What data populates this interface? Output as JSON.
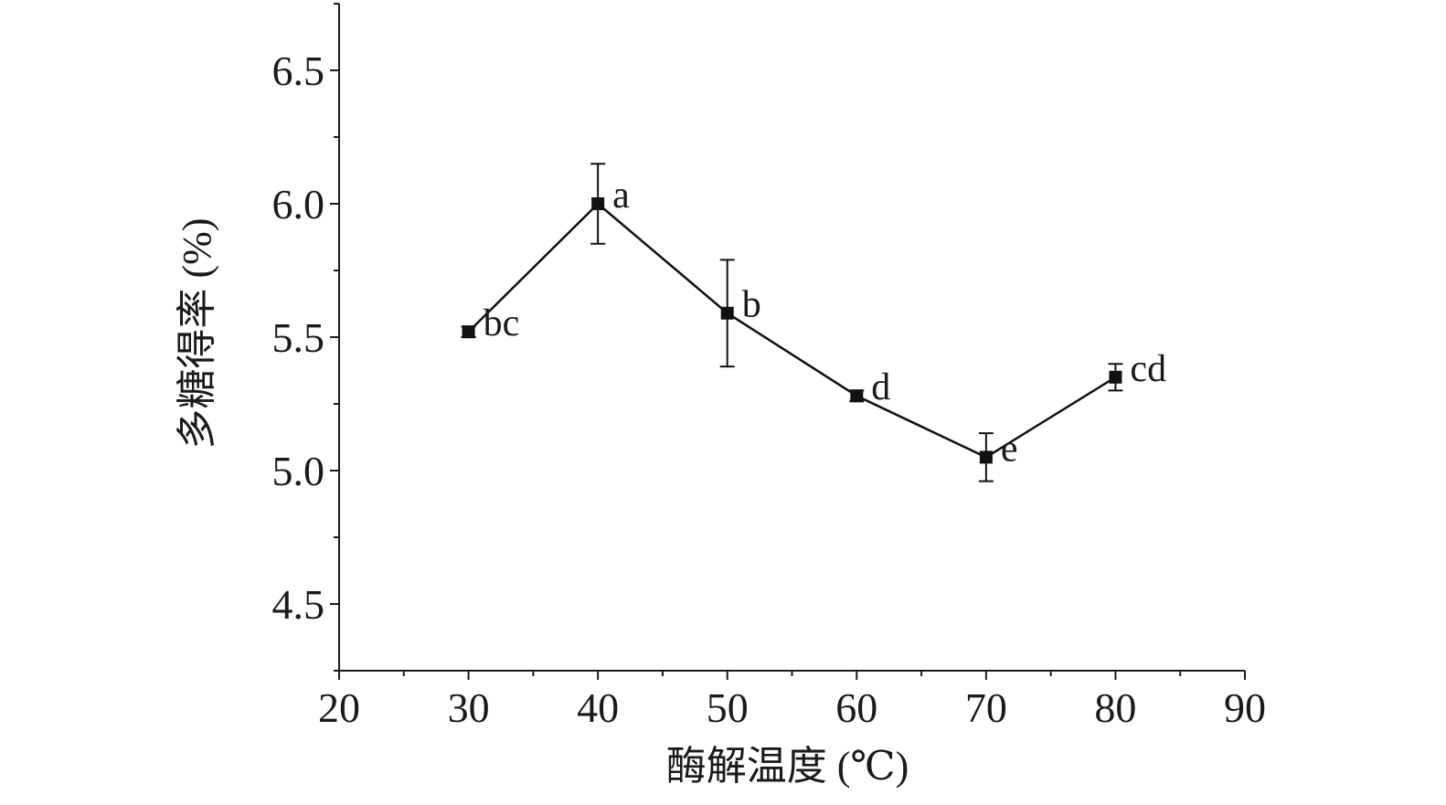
{
  "chart_data": {
    "type": "line",
    "title": "",
    "xlabel": "酶解温度 (℃)",
    "ylabel": "多糖得率 (%)",
    "xlim": [
      20,
      90
    ],
    "ylim": [
      4.25,
      6.75
    ],
    "xticks": [
      20,
      30,
      40,
      50,
      60,
      70,
      80,
      90
    ],
    "yticks": [
      4.5,
      5.0,
      5.5,
      6.0,
      6.5
    ],
    "ytick_labels": [
      "4.5",
      "5.0",
      "5.5",
      "6.0",
      "6.5"
    ],
    "grid": false,
    "series": [
      {
        "x": [
          30,
          40,
          50,
          60,
          70,
          80
        ],
        "y": [
          5.52,
          6.0,
          5.59,
          5.28,
          5.05,
          5.35
        ],
        "error": [
          0.02,
          0.15,
          0.2,
          0.02,
          0.09,
          0.05
        ],
        "labels": [
          "bc",
          "a",
          "b",
          "d",
          "e",
          "cd"
        ],
        "marker": "square",
        "color": "#111111"
      }
    ]
  }
}
